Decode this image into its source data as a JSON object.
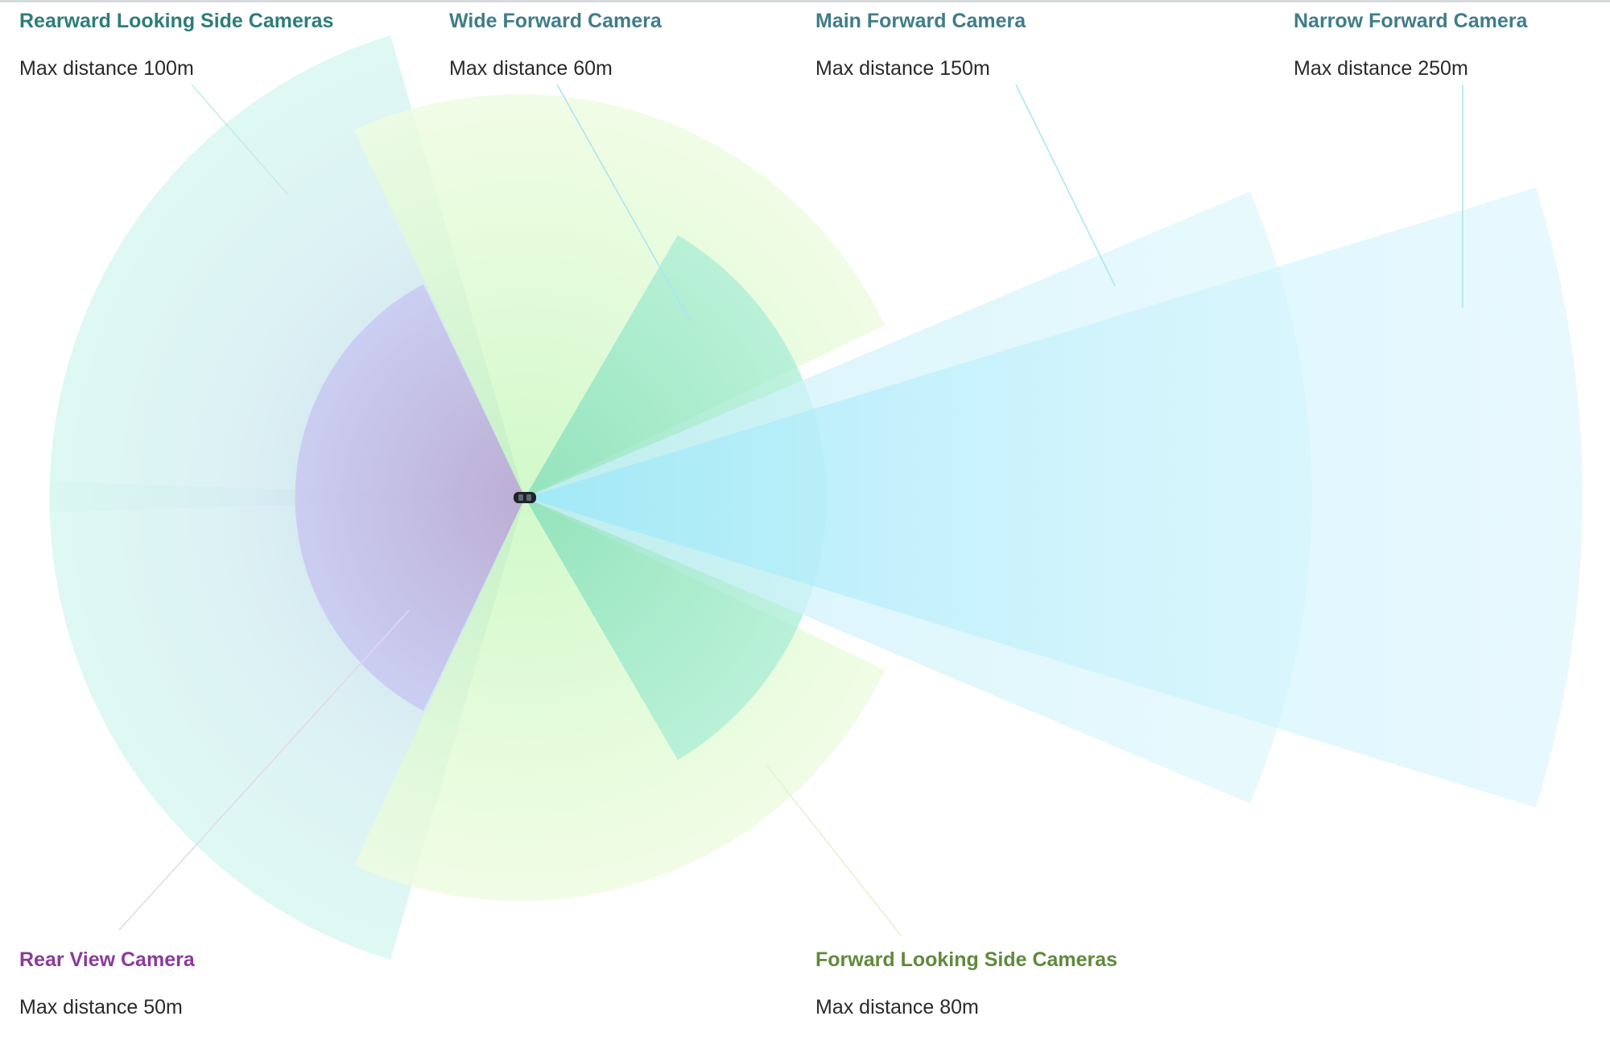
{
  "cameras": {
    "rearward_side": {
      "title": "Rearward Looking Side Cameras",
      "distance": "Max distance 100m"
    },
    "wide_forward": {
      "title": "Wide Forward Camera",
      "distance": "Max distance 60m"
    },
    "main_forward": {
      "title": "Main Forward Camera",
      "distance": "Max distance 150m"
    },
    "narrow_forward": {
      "title": "Narrow Forward Camera",
      "distance": "Max distance 250m"
    },
    "rear_view": {
      "title": "Rear View Camera",
      "distance": "Max distance 50m"
    },
    "forward_side": {
      "title": "Forward Looking Side Cameras",
      "distance": "Max distance 80m"
    }
  },
  "colors": {
    "rearward_side": "#cfe8f0",
    "wide_forward": "#9ee3c8",
    "main_forward": "#c6f1fb",
    "narrow_forward": "#b8ecfb",
    "rear_view": "#c3c2ee",
    "forward_side": "#e4fbd2",
    "vehicle": "#1e2428"
  }
}
